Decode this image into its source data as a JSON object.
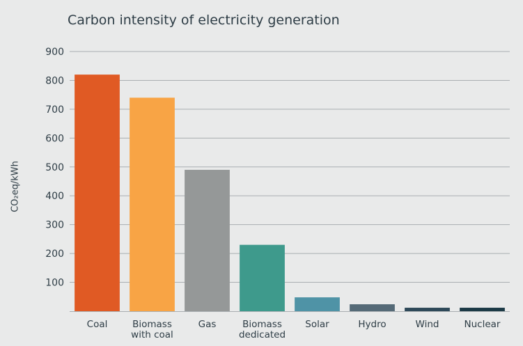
{
  "chart_data": {
    "type": "bar",
    "title": "Carbon intensity of electricity generation",
    "ylabel": "CO₂eq/kWh",
    "xlabel": "",
    "ylim": [
      0,
      900
    ],
    "yticks": [
      "100",
      "200",
      "300",
      "400",
      "500",
      "600",
      "700",
      "800",
      "900"
    ],
    "grid": true,
    "categories": [
      [
        "Coal"
      ],
      [
        "Biomass",
        "with coal"
      ],
      [
        "Gas"
      ],
      [
        "Biomass",
        "dedicated"
      ],
      [
        "Solar"
      ],
      [
        "Hydro"
      ],
      [
        "Wind"
      ],
      [
        "Nuclear"
      ]
    ],
    "values": [
      820,
      740,
      490,
      230,
      48,
      24,
      12,
      12
    ],
    "colors": [
      "#e05a24",
      "#f8a445",
      "#959898",
      "#3e9a8c",
      "#4f93a6",
      "#556a77",
      "#2e4959",
      "#1c3a46"
    ]
  }
}
